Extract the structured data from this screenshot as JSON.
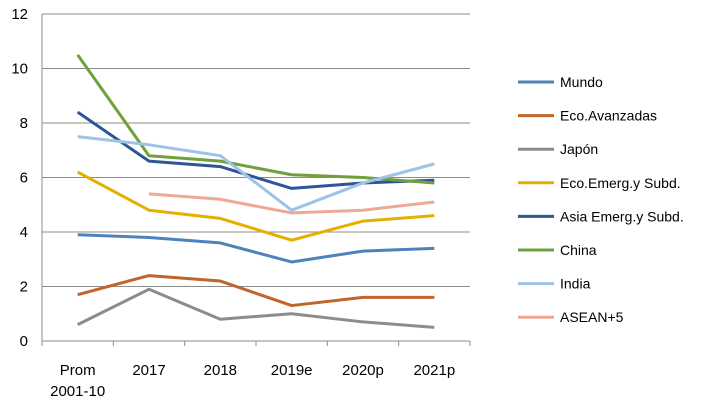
{
  "chart_data": {
    "type": "line",
    "title": "",
    "xlabel": "",
    "ylabel": "",
    "ylim": [
      0,
      12
    ],
    "yticks": [
      0,
      2,
      4,
      6,
      8,
      10,
      12
    ],
    "grid": true,
    "legend_position": "right",
    "categories": [
      [
        "Prom",
        "2001-10"
      ],
      [
        "2017"
      ],
      [
        "2018"
      ],
      [
        "2019e"
      ],
      [
        "2020p"
      ],
      [
        "2021p"
      ]
    ],
    "series": [
      {
        "name": "Mundo",
        "color": "#4f81bd",
        "values": [
          3.9,
          3.8,
          3.6,
          2.9,
          3.3,
          3.4
        ]
      },
      {
        "name": "Eco.Avanzadas",
        "color": "#c0652b",
        "values": [
          1.7,
          2.4,
          2.2,
          1.3,
          1.6,
          1.6
        ]
      },
      {
        "name": "Japón",
        "color": "#8c8c8c",
        "values": [
          0.6,
          1.9,
          0.8,
          1.0,
          0.7,
          0.5
        ]
      },
      {
        "name": "Eco.Emerg.y Subd.",
        "color": "#e3b000",
        "values": [
          6.2,
          4.8,
          4.5,
          3.7,
          4.4,
          4.6
        ]
      },
      {
        "name": "Asia Emerg.y Subd.",
        "color": "#2f5597",
        "values": [
          8.4,
          6.6,
          6.4,
          5.6,
          5.8,
          5.9
        ]
      },
      {
        "name": "China",
        "color": "#70a03c",
        "values": [
          10.5,
          6.8,
          6.6,
          6.1,
          6.0,
          5.8
        ]
      },
      {
        "name": "India",
        "color": "#9dc3e6",
        "values": [
          7.5,
          7.2,
          6.8,
          4.8,
          5.8,
          6.5
        ]
      },
      {
        "name": "ASEAN+5",
        "color": "#f0a896",
        "values": [
          null,
          5.4,
          5.2,
          4.7,
          4.8,
          5.1
        ]
      }
    ]
  }
}
